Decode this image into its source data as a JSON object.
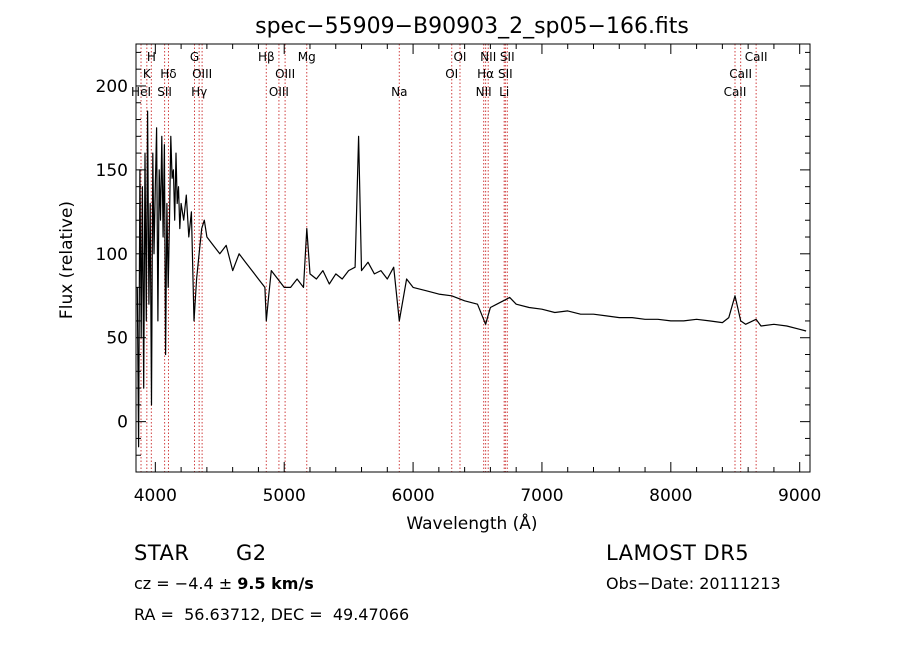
{
  "chart_data": {
    "type": "line",
    "title": "spec−55909−B90903_2_sp05−166.fits",
    "xlabel": "Wavelength (Å)",
    "ylabel": "Flux (relative)",
    "xlim": [
      3850,
      9080
    ],
    "ylim": [
      -30,
      225
    ],
    "xticks": [
      4000,
      5000,
      6000,
      7000,
      8000,
      9000
    ],
    "yticks": [
      0,
      50,
      100,
      150,
      200
    ],
    "grid": false,
    "series": [
      {
        "x": [
          3860,
          3870,
          3880,
          3890,
          3900,
          3910,
          3920,
          3930,
          3940,
          3950,
          3960,
          3970,
          3980,
          3990,
          4000,
          4010,
          4020,
          4030,
          4040,
          4050,
          4060,
          4070,
          4080,
          4090,
          4100,
          4110,
          4120,
          4130,
          4140,
          4150,
          4160,
          4170,
          4180,
          4190,
          4200,
          4220,
          4240,
          4260,
          4280,
          4300,
          4320,
          4340,
          4360,
          4380,
          4400,
          4450,
          4500,
          4550,
          4600,
          4650,
          4700,
          4750,
          4800,
          4850,
          4861,
          4880,
          4900,
          4950,
          5000,
          5050,
          5100,
          5150,
          5175,
          5200,
          5250,
          5300,
          5350,
          5400,
          5450,
          5500,
          5550,
          5577,
          5600,
          5650,
          5700,
          5750,
          5800,
          5850,
          5893,
          5950,
          6000,
          6100,
          6200,
          6300,
          6400,
          6500,
          6563,
          6600,
          6650,
          6700,
          6750,
          6800,
          6900,
          7000,
          7100,
          7200,
          7300,
          7400,
          7500,
          7600,
          7700,
          7800,
          7900,
          8000,
          8100,
          8200,
          8300,
          8400,
          8450,
          8498,
          8542,
          8580,
          8662,
          8700,
          8800,
          8900,
          9000,
          9050
        ],
        "y": [
          80,
          -15,
          150,
          50,
          140,
          20,
          160,
          60,
          185,
          70,
          130,
          10,
          160,
          100,
          140,
          175,
          60,
          150,
          120,
          170,
          110,
          165,
          40,
          130,
          80,
          120,
          170,
          145,
          150,
          120,
          160,
          130,
          140,
          115,
          130,
          120,
          135,
          110,
          125,
          60,
          85,
          100,
          115,
          120,
          110,
          105,
          100,
          105,
          90,
          100,
          95,
          90,
          85,
          80,
          60,
          75,
          90,
          85,
          80,
          80,
          85,
          80,
          115,
          88,
          85,
          90,
          82,
          88,
          85,
          90,
          92,
          170,
          90,
          95,
          88,
          90,
          85,
          92,
          60,
          85,
          80,
          78,
          76,
          75,
          72,
          70,
          58,
          68,
          70,
          72,
          74,
          70,
          68,
          67,
          65,
          66,
          64,
          64,
          63,
          62,
          62,
          61,
          61,
          60,
          60,
          61,
          60,
          59,
          62,
          75,
          60,
          58,
          61,
          57,
          58,
          57,
          55,
          54
        ]
      }
    ],
    "lines": [
      {
        "wavelength": 3889,
        "label": "HeI",
        "row": 3
      },
      {
        "wavelength": 3934,
        "label": "K",
        "row": 2
      },
      {
        "wavelength": 3969,
        "label": "H",
        "row": 1
      },
      {
        "wavelength": 4072,
        "label": "SII",
        "row": 3
      },
      {
        "wavelength": 4102,
        "label": "Hδ",
        "row": 2
      },
      {
        "wavelength": 4304,
        "label": "G",
        "row": 1
      },
      {
        "wavelength": 4340,
        "label": "Hγ",
        "row": 3
      },
      {
        "wavelength": 4363,
        "label": "OIII",
        "row": 2
      },
      {
        "wavelength": 4861,
        "label": "Hβ",
        "row": 1
      },
      {
        "wavelength": 4959,
        "label": "OIII",
        "row": 3
      },
      {
        "wavelength": 5007,
        "label": "OIII",
        "row": 2
      },
      {
        "wavelength": 5175,
        "label": "Mg",
        "row": 1
      },
      {
        "wavelength": 5893,
        "label": "Na",
        "row": 3
      },
      {
        "wavelength": 6300,
        "label": "OI",
        "row": 2
      },
      {
        "wavelength": 6364,
        "label": "OI",
        "row": 1
      },
      {
        "wavelength": 6548,
        "label": "NII",
        "row": 3
      },
      {
        "wavelength": 6563,
        "label": "Hα",
        "row": 2
      },
      {
        "wavelength": 6583,
        "label": "NII",
        "row": 1
      },
      {
        "wavelength": 6707,
        "label": "Li",
        "row": 3
      },
      {
        "wavelength": 6716,
        "label": "SII",
        "row": 2
      },
      {
        "wavelength": 6731,
        "label": "SII",
        "row": 1
      },
      {
        "wavelength": 8498,
        "label": "CaII",
        "row": 3
      },
      {
        "wavelength": 8542,
        "label": "CaII",
        "row": 2
      },
      {
        "wavelength": 8662,
        "label": "CaII",
        "row": 1
      }
    ],
    "line_color": "#d04040"
  },
  "info": {
    "class_label": "STAR",
    "subclass": "G2",
    "survey": "LAMOST DR5",
    "cz_label": "cz = ",
    "cz_value": "−4.4",
    "cz_pm": " ± ",
    "cz_err": "9.5",
    "cz_unit": " km/s",
    "obs_date": "Obs−Date: 20111213",
    "coords": "RA =  56.63712, DEC =  49.47066"
  }
}
